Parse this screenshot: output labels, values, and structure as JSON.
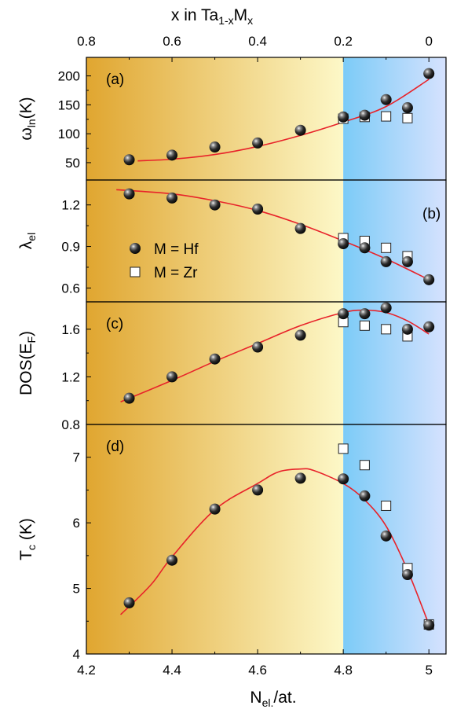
{
  "chart_data": {
    "type": "scatter",
    "top_axis": {
      "label_x": "x in Ta",
      "label_sub": "1-x",
      "label_m": "M",
      "label_msub": "x",
      "ticks": [
        "0.8",
        "0.6",
        "0.4",
        "0.2",
        "0"
      ],
      "tick_positions": [
        4.2,
        4.4,
        4.6,
        4.8,
        5.0
      ]
    },
    "bottom_axis": {
      "label_main": "N",
      "label_sub": "el.",
      "label_rest": "/at.",
      "ticks": [
        "4.2",
        "4.4",
        "4.6",
        "4.8",
        "5"
      ],
      "tick_values": [
        4.2,
        4.4,
        4.6,
        4.8,
        5.0
      ],
      "xlim": [
        4.2,
        5.04
      ]
    },
    "background": {
      "left_gradient": [
        "#E0A630",
        "#FDF8C8"
      ],
      "right_gradient": [
        "#7CCBF7",
        "#D6E2FE"
      ],
      "split_x": 4.8
    },
    "colors": {
      "fit": "#E8232A",
      "sphere": "#111111",
      "square_fill": "#ffffff",
      "square_stroke": "#222222"
    },
    "legend": {
      "hf_label": "M = Hf",
      "zr_label": "M = Zr"
    },
    "panels": [
      {
        "id": "a",
        "panel_label": "(a)",
        "ylabel_main": "ω",
        "ylabel_sub": "ln",
        "ylabel_rest": "(K)",
        "ylim": [
          20,
          232
        ],
        "yticks": [
          50,
          100,
          150,
          200
        ],
        "ytick_labels": [
          "50",
          "100",
          "150",
          "200"
        ],
        "hf": {
          "x": [
            4.3,
            4.4,
            4.5,
            4.6,
            4.7,
            4.8,
            4.85,
            4.9,
            4.95,
            5.0
          ],
          "y": [
            55,
            63,
            77,
            84,
            106,
            129,
            132,
            159,
            145,
            204
          ]
        },
        "zr": {
          "x": [
            4.8,
            4.85,
            4.9,
            4.95
          ],
          "y": [
            126,
            129,
            130,
            127
          ]
        },
        "fit": {
          "x": [
            4.32,
            4.4,
            4.5,
            4.6,
            4.7,
            4.8,
            4.9,
            5.0
          ],
          "y": [
            53,
            56,
            64,
            78,
            97,
            120,
            147,
            194
          ]
        }
      },
      {
        "id": "b",
        "panel_label": "(b)",
        "ylabel_main": "λ",
        "ylabel_sub": "el",
        "ylabel_rest": "",
        "ylim": [
          0.5,
          1.38
        ],
        "yticks": [
          0.6,
          0.9,
          1.2
        ],
        "ytick_labels": [
          "0.6",
          "0.9",
          "1.2"
        ],
        "hf": {
          "x": [
            4.3,
            4.4,
            4.5,
            4.6,
            4.7,
            4.8,
            4.85,
            4.9,
            4.95,
            5.0
          ],
          "y": [
            1.28,
            1.25,
            1.2,
            1.17,
            1.03,
            0.92,
            0.89,
            0.79,
            0.79,
            0.66
          ]
        },
        "zr": {
          "x": [
            4.8,
            4.85,
            4.9,
            4.95
          ],
          "y": [
            0.96,
            0.94,
            0.89,
            0.83
          ]
        },
        "fit": {
          "x": [
            4.27,
            4.4,
            4.5,
            4.6,
            4.7,
            4.8,
            4.9,
            5.0
          ],
          "y": [
            1.31,
            1.28,
            1.23,
            1.16,
            1.06,
            0.94,
            0.81,
            0.66
          ]
        }
      },
      {
        "id": "c",
        "panel_label": "(c)",
        "ylabel_main": "DOS(E",
        "ylabel_sub": "F",
        "ylabel_rest": ")",
        "ylim": [
          0.8,
          1.83
        ],
        "yticks": [
          0.8,
          1.2,
          1.6
        ],
        "ytick_labels": [
          "0.8",
          "1.2",
          "1.6"
        ],
        "hf": {
          "x": [
            4.3,
            4.4,
            4.5,
            4.6,
            4.7,
            4.8,
            4.85,
            4.9,
            4.95,
            5.0
          ],
          "y": [
            1.02,
            1.2,
            1.35,
            1.45,
            1.55,
            1.73,
            1.73,
            1.78,
            1.6,
            1.62
          ]
        },
        "zr": {
          "x": [
            4.8,
            4.85,
            4.9,
            4.95
          ],
          "y": [
            1.66,
            1.63,
            1.6,
            1.54
          ]
        },
        "fit": {
          "x": [
            4.28,
            4.4,
            4.5,
            4.6,
            4.7,
            4.8,
            4.85,
            4.9,
            4.95,
            5.0
          ],
          "y": [
            0.99,
            1.17,
            1.33,
            1.48,
            1.63,
            1.74,
            1.76,
            1.74,
            1.67,
            1.56
          ]
        }
      },
      {
        "id": "d",
        "panel_label": "(d)",
        "ylabel_main": "T",
        "ylabel_sub": "c",
        "ylabel_rest": " (K)",
        "ylim": [
          4.0,
          7.5
        ],
        "yticks": [
          4,
          5,
          6,
          7
        ],
        "ytick_labels": [
          "4",
          "5",
          "6",
          "7"
        ],
        "hf": {
          "x": [
            4.3,
            4.4,
            4.5,
            4.6,
            4.7,
            4.8,
            4.85,
            4.9,
            4.95,
            5.0
          ],
          "y": [
            4.78,
            5.43,
            6.21,
            6.5,
            6.68,
            6.67,
            6.41,
            5.8,
            5.21,
            4.44
          ]
        },
        "zr": {
          "x": [
            4.8,
            4.85,
            4.9,
            4.95,
            5.0
          ],
          "y": [
            7.13,
            6.88,
            6.26,
            5.31,
            4.45
          ]
        },
        "fit": {
          "x": [
            4.28,
            4.35,
            4.4,
            4.5,
            4.6,
            4.65,
            4.7,
            4.73,
            4.8,
            4.85,
            4.9,
            4.95,
            5.0
          ],
          "y": [
            4.6,
            5.05,
            5.48,
            6.2,
            6.6,
            6.78,
            6.82,
            6.8,
            6.6,
            6.35,
            5.95,
            5.28,
            4.45
          ]
        }
      }
    ]
  }
}
